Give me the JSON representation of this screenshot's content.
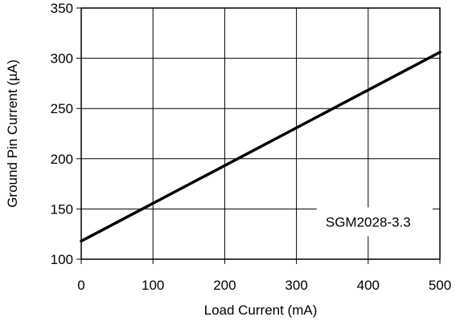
{
  "chart_data": {
    "type": "line",
    "title": "",
    "xlabel": "Load Current (mA)",
    "ylabel": "Ground Pin Current (µA)",
    "xlim": [
      0,
      500
    ],
    "ylim": [
      100,
      350
    ],
    "xticks": [
      0,
      100,
      200,
      300,
      400,
      500
    ],
    "yticks": [
      100,
      150,
      200,
      250,
      300,
      350
    ],
    "xtick_labels": [
      "0",
      "100",
      "200",
      "300",
      "400",
      "500"
    ],
    "ytick_labels": [
      "100",
      "150",
      "200",
      "250",
      "300",
      "350"
    ],
    "grid": true,
    "series": [
      {
        "x": [
          0,
          500
        ],
        "y": [
          118,
          306
        ],
        "color": "#000000"
      }
    ],
    "annotations": [
      {
        "text": "SGM2028-3.3",
        "x": 400,
        "y": 126
      }
    ]
  }
}
